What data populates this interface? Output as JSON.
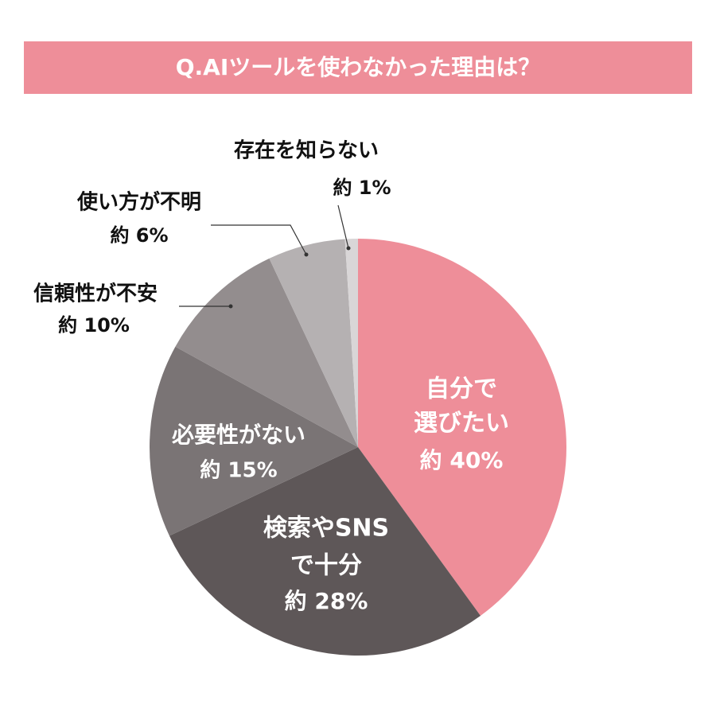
{
  "chart_data": {
    "type": "pie",
    "title": "Q.AIツールを使わなかった理由は？",
    "categories": [
      [
        "自分で",
        "選びたい"
      ],
      [
        "検索やSNS",
        "で十分"
      ],
      [
        "必要性がない"
      ],
      [
        "信頼性が不安"
      ],
      [
        "使い方が不明"
      ],
      [
        "存在を知らない"
      ]
    ],
    "values": [
      40,
      28,
      15,
      10,
      6,
      1
    ],
    "value_labels": [
      "約 40%",
      "約 28%",
      "約 15%",
      "約 10%",
      "約 6%",
      "約 1%"
    ],
    "colors": [
      "#ee8e99",
      "#5e5758",
      "#7a7475",
      "#938d8e",
      "#b5b1b2",
      "#d9d6d7"
    ]
  }
}
